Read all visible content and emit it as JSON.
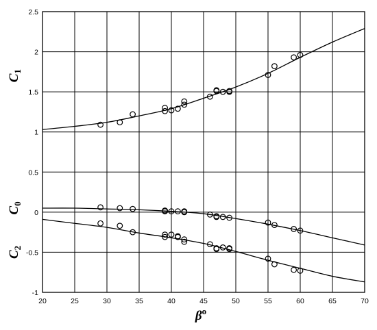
{
  "chart_data": {
    "type": "scatter",
    "title": "",
    "xlim": [
      20,
      70
    ],
    "ylim": [
      -1,
      2.5
    ],
    "xticks": [
      20,
      25,
      30,
      35,
      40,
      45,
      50,
      55,
      60,
      65,
      70
    ],
    "yticks": [
      -1,
      -0.5,
      0,
      0.5,
      1,
      1.5,
      2,
      2.5
    ],
    "xtick_labels": [
      "20",
      "25",
      "30",
      "35",
      "40",
      "45",
      "50",
      "55",
      "60",
      "65",
      "70"
    ],
    "ytick_labels": [
      "-1",
      "-0.5",
      "0",
      "0.5",
      "1",
      "1.5",
      "2",
      "2.5"
    ],
    "grid": true,
    "xlabel": {
      "main": "β",
      "sup": "o"
    },
    "ylabels": [
      {
        "id": "c1",
        "main": "C",
        "sub": "1",
        "y": 1.7
      },
      {
        "id": "c0",
        "main": "C",
        "sub": "0",
        "y": 0.05
      },
      {
        "id": "c2",
        "main": "C",
        "sub": "2",
        "y": -0.5
      }
    ],
    "series": [
      {
        "id": "c1",
        "points": [
          [
            29,
            1.09
          ],
          [
            32,
            1.12
          ],
          [
            34,
            1.22
          ],
          [
            39,
            1.3
          ],
          [
            39,
            1.26
          ],
          [
            40,
            1.27
          ],
          [
            41,
            1.29
          ],
          [
            42,
            1.34
          ],
          [
            42,
            1.38
          ],
          [
            46,
            1.44
          ],
          [
            47,
            1.51
          ],
          [
            47,
            1.52
          ],
          [
            48,
            1.5
          ],
          [
            49,
            1.5
          ],
          [
            49,
            1.51
          ],
          [
            55,
            1.71
          ],
          [
            56,
            1.82
          ],
          [
            59,
            1.93
          ],
          [
            60,
            1.96
          ]
        ],
        "curve": [
          [
            20,
            1.03
          ],
          [
            25,
            1.07
          ],
          [
            30,
            1.12
          ],
          [
            35,
            1.2
          ],
          [
            40,
            1.29
          ],
          [
            45,
            1.42
          ],
          [
            50,
            1.56
          ],
          [
            55,
            1.73
          ],
          [
            60,
            1.93
          ],
          [
            65,
            2.12
          ],
          [
            70,
            2.29
          ]
        ]
      },
      {
        "id": "c0",
        "points": [
          [
            29,
            0.06
          ],
          [
            32,
            0.05
          ],
          [
            34,
            0.04
          ],
          [
            39,
            0.02
          ],
          [
            39,
            0.01
          ],
          [
            40,
            0.01
          ],
          [
            41,
            0.01
          ],
          [
            42,
            0.0
          ],
          [
            42,
            0.01
          ],
          [
            46,
            -0.03
          ],
          [
            47,
            -0.05
          ],
          [
            47,
            -0.06
          ],
          [
            48,
            -0.06
          ],
          [
            49,
            -0.07
          ],
          [
            55,
            -0.13
          ],
          [
            56,
            -0.16
          ],
          [
            59,
            -0.21
          ],
          [
            60,
            -0.23
          ]
        ],
        "curve": [
          [
            20,
            0.05
          ],
          [
            25,
            0.05
          ],
          [
            30,
            0.04
          ],
          [
            35,
            0.03
          ],
          [
            40,
            0.01
          ],
          [
            45,
            -0.02
          ],
          [
            50,
            -0.08
          ],
          [
            55,
            -0.15
          ],
          [
            60,
            -0.23
          ],
          [
            65,
            -0.32
          ],
          [
            70,
            -0.41
          ]
        ]
      },
      {
        "id": "c2",
        "points": [
          [
            29,
            -0.14
          ],
          [
            32,
            -0.17
          ],
          [
            34,
            -0.25
          ],
          [
            39,
            -0.28
          ],
          [
            39,
            -0.31
          ],
          [
            40,
            -0.28
          ],
          [
            41,
            -0.3
          ],
          [
            41,
            -0.31
          ],
          [
            42,
            -0.34
          ],
          [
            42,
            -0.37
          ],
          [
            46,
            -0.4
          ],
          [
            47,
            -0.45
          ],
          [
            47,
            -0.46
          ],
          [
            48,
            -0.44
          ],
          [
            49,
            -0.45
          ],
          [
            49,
            -0.46
          ],
          [
            55,
            -0.58
          ],
          [
            56,
            -0.65
          ],
          [
            59,
            -0.72
          ],
          [
            60,
            -0.73
          ]
        ],
        "curve": [
          [
            20,
            -0.09
          ],
          [
            25,
            -0.14
          ],
          [
            30,
            -0.19
          ],
          [
            35,
            -0.26
          ],
          [
            40,
            -0.32
          ],
          [
            45,
            -0.39
          ],
          [
            50,
            -0.49
          ],
          [
            55,
            -0.6
          ],
          [
            60,
            -0.7
          ],
          [
            65,
            -0.8
          ],
          [
            70,
            -0.87
          ]
        ]
      }
    ]
  }
}
